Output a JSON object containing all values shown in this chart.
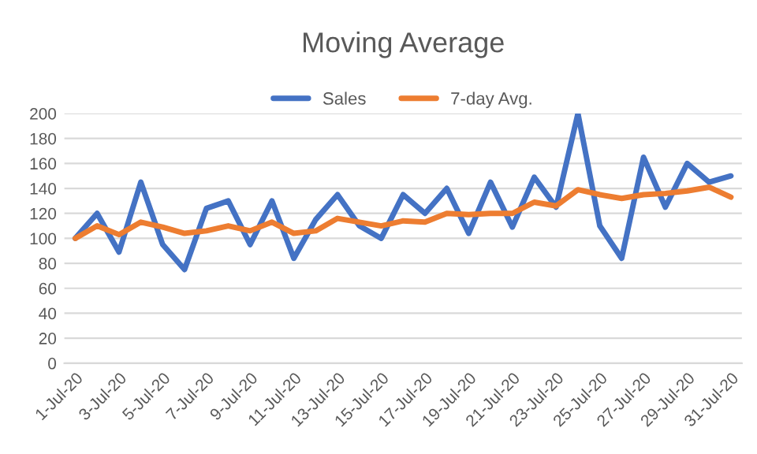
{
  "chart_data": {
    "type": "line",
    "title": "Moving Average",
    "categories": [
      "1-Jul-20",
      null,
      "3-Jul-20",
      null,
      "5-Jul-20",
      null,
      "7-Jul-20",
      null,
      "9-Jul-20",
      null,
      "11-Jul-20",
      null,
      "13-Jul-20",
      null,
      "15-Jul-20",
      null,
      "17-Jul-20",
      null,
      "19-Jul-20",
      null,
      "21-Jul-20",
      null,
      "23-Jul-20",
      null,
      "25-Jul-20",
      null,
      "27-Jul-20",
      null,
      "29-Jul-20",
      null,
      "31-Jul-20"
    ],
    "series": [
      {
        "name": "Sales",
        "color": "#4472c4",
        "values": [
          100,
          120,
          89,
          145,
          95,
          75,
          124,
          130,
          95,
          130,
          84,
          115,
          135,
          110,
          100,
          135,
          120,
          140,
          104,
          145,
          109,
          149,
          125,
          200,
          110,
          84,
          165,
          125,
          160,
          145,
          150
        ]
      },
      {
        "name": "7-day Avg.",
        "color": "#ed7d31",
        "values": [
          100,
          110,
          103,
          113,
          109,
          104,
          106,
          110,
          106,
          113,
          104,
          106,
          116,
          113,
          110,
          114,
          113,
          120,
          119,
          120,
          120,
          129,
          126,
          139,
          135,
          132,
          135,
          136,
          138,
          141,
          133
        ]
      }
    ],
    "ylim": [
      0,
      200
    ],
    "yticks": [
      0,
      20,
      40,
      60,
      80,
      100,
      120,
      140,
      160,
      180,
      200
    ],
    "grid": "y",
    "legend": "top",
    "marker": "none",
    "line_style": "solid"
  }
}
